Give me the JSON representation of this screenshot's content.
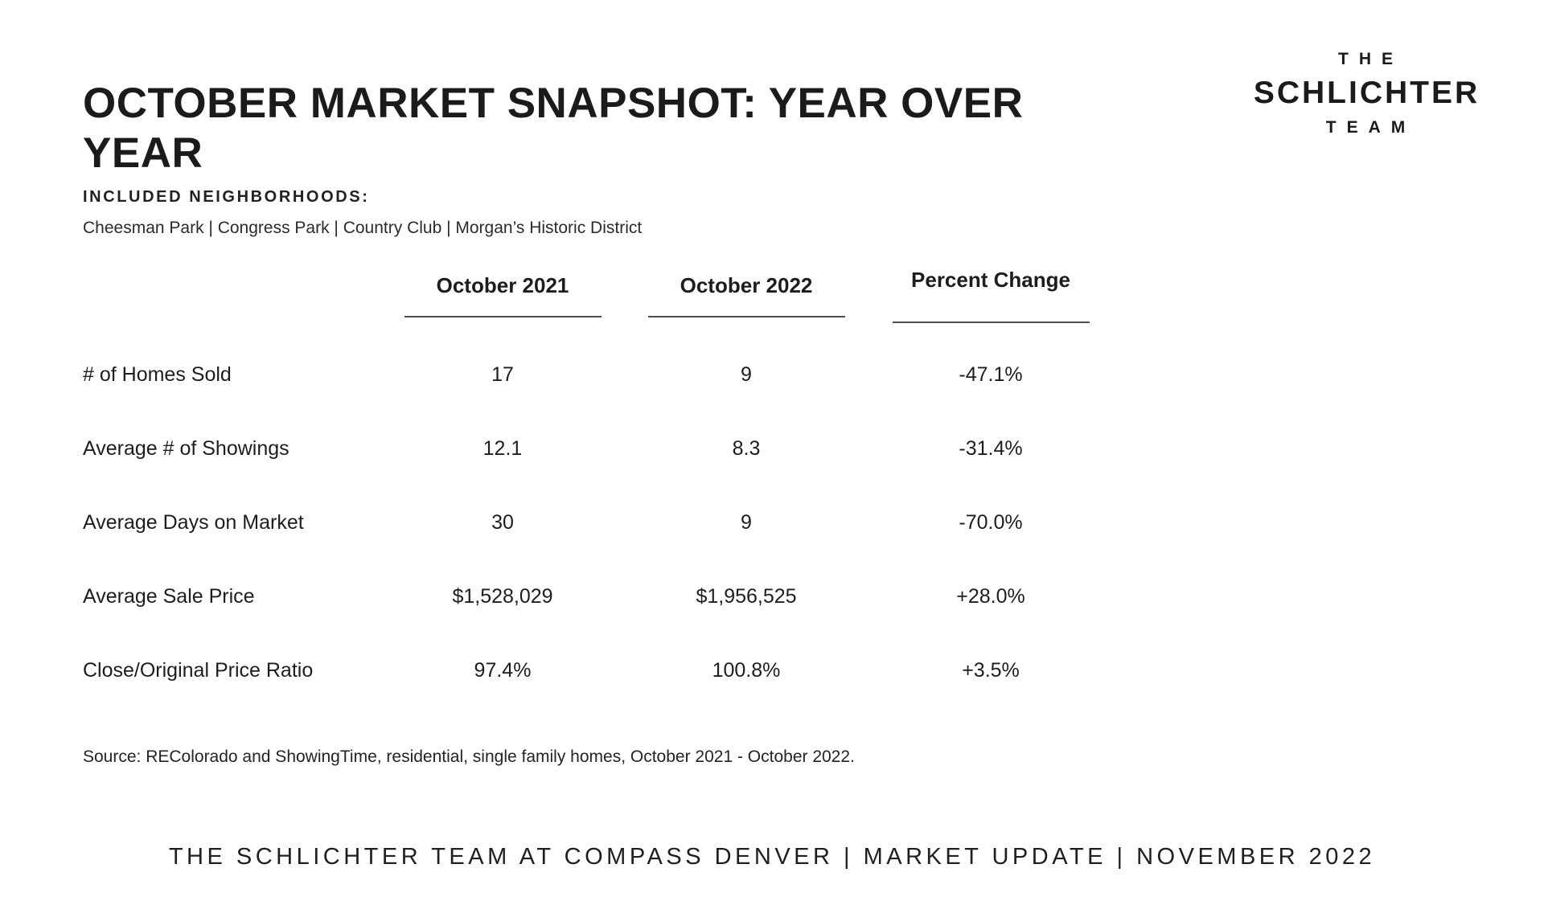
{
  "header": {
    "title_line1": "OCTOBER MARKET SNAPSHOT: YEAR OVER",
    "title_line2": "YEAR",
    "neighborhoods_label": "INCLUDED NEIGHBORHOODS:",
    "neighborhoods": "Cheesman Park | Congress Park | Country Club | Morgan’s Historic District"
  },
  "logo": {
    "line1": "THE",
    "line2": "SCHLICHTER",
    "line3": "TEAM"
  },
  "table": {
    "columns": [
      "October 2021",
      "October 2022",
      "Percent Change"
    ],
    "rows": [
      {
        "label": "# of Homes Sold",
        "oct2021": "17",
        "oct2022": "9",
        "change": "-47.1%"
      },
      {
        "label": "Average # of Showings",
        "oct2021": "12.1",
        "oct2022": "8.3",
        "change": "-31.4%"
      },
      {
        "label": "Average Days on Market",
        "oct2021": "30",
        "oct2022": "9",
        "change": "-70.0%"
      },
      {
        "label": "Average Sale Price",
        "oct2021": "$1,528,029",
        "oct2022": "$1,956,525",
        "change": "+28.0%"
      },
      {
        "label": "Close/Original Price Ratio",
        "oct2021": "97.4%",
        "oct2022": "100.8%",
        "change": "+3.5%"
      }
    ]
  },
  "source": "Source: REColorado and ShowingTime, residential, single family homes, October 2021 - October 2022.",
  "footer": "THE SCHLICHTER TEAM AT COMPASS DENVER | MARKET UPDATE | NOVEMBER 2022",
  "colors": {
    "text": "#1a1a1a",
    "background": "#ffffff",
    "underline": "#4d4d4d"
  }
}
